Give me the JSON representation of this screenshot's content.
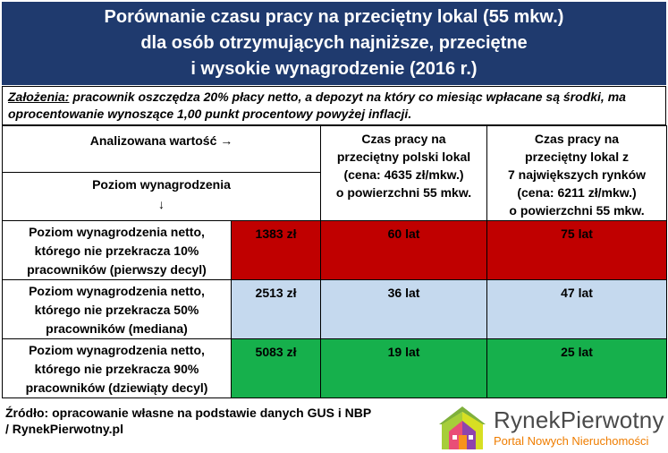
{
  "title": {
    "line1": "Porównanie czasu pracy na przeciętny lokal (55 mkw.)",
    "line2": "dla osób otrzymujących najniższe, przeciętne",
    "line3": "i wysokie wynagrodzenie (2016 r.)"
  },
  "assumptions": {
    "label": "Założenia:",
    "text": " pracownik oszczędza 20% płacy netto, a depozyt na który co miesiąc wpłacane są środki, ma oprocentowanie wynoszące 1,00 punkt procentowy powyżej inflacji."
  },
  "header": {
    "analyzed": "Analizowana wartość →",
    "level": "Poziom wynagrodzenia",
    "arrow_down": "↓",
    "col1": {
      "l1": "Czas pracy na",
      "l2": "przeciętny polski lokal",
      "l3": "(cena: 4635 zł/mkw.)",
      "l4": "o powierzchni 55 mkw."
    },
    "col2": {
      "l1": "Czas pracy na",
      "l2": "przeciętny lokal z",
      "l3": "7 największych rynków",
      "l4": "(cena: 6211 zł/mkw.)",
      "l5": "o powierzchni 55 mkw."
    }
  },
  "rows": [
    {
      "l1": "Poziom wynagrodzenia netto,",
      "l2": "którego nie przekracza 10%",
      "l3": "pracowników (pierwszy decyl)",
      "amount": "1383 zł",
      "poland": "60 lat",
      "top7": "75 lat",
      "color": "#c00000"
    },
    {
      "l1": "Poziom wynagrodzenia netto,",
      "l2": "którego nie przekracza 50%",
      "l3": "pracowników (mediana)",
      "amount": "2513 zł",
      "poland": "36 lat",
      "top7": "47 lat",
      "color": "#c5d9ee"
    },
    {
      "l1": "Poziom wynagrodzenia netto,",
      "l2": "którego nie przekracza 90%",
      "l3": "pracowników (dziewiąty decyl)",
      "amount": "5083 zł",
      "poland": "19 lat",
      "top7": "25 lat",
      "color": "#16b04c"
    }
  ],
  "source": {
    "line1": "Źródło: opracowanie własne na podstawie danych GUS i NBP",
    "line2": " / RynekPierwotny.pl"
  },
  "logo": {
    "name_part1": "Rynek",
    "name_part2": "Pierwotny",
    "tagline": "Portal Nowych Nieruchomości",
    "icon": "house-logo-icon"
  }
}
